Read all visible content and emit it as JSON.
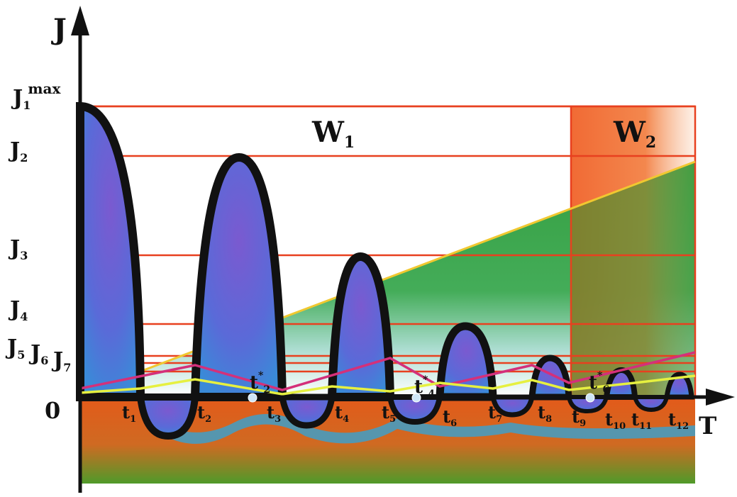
{
  "axes": {
    "y_label": "J",
    "x_label": "T",
    "origin_label": "0"
  },
  "levels": [
    {
      "base": "J",
      "sub": "1",
      "sup": "max"
    },
    {
      "base": "J",
      "sub": "2",
      "sup": ""
    },
    {
      "base": "J",
      "sub": "3",
      "sup": ""
    },
    {
      "base": "J",
      "sub": "4",
      "sup": ""
    },
    {
      "base": "J",
      "sub": "5",
      "sup": ""
    },
    {
      "base": "J",
      "sub": "6",
      "sup": ""
    },
    {
      "base": "J",
      "sub": "7",
      "sup": ""
    }
  ],
  "regions": [
    {
      "base": "W",
      "sub": "1"
    },
    {
      "base": "W",
      "sub": "2"
    }
  ],
  "time_marks": [
    "1",
    "2",
    "3",
    "4",
    "5",
    "6",
    "7",
    "8",
    "9",
    "10",
    "11",
    "12"
  ],
  "star_marks": [
    "2",
    "4",
    "6"
  ],
  "colors": {
    "level_line": "#e8401f",
    "lobe_fill": "#6a55c8",
    "lobe_outline": "#111111",
    "lower_zone": "#e05a1c",
    "green_zone": "#2f9a3a",
    "w2_band": "#f06a28",
    "rising_line": "#f4e14a",
    "magenta_line": "#d4307a",
    "yellow_line": "#e6f040",
    "teal_band": "#3f9fc8"
  }
}
